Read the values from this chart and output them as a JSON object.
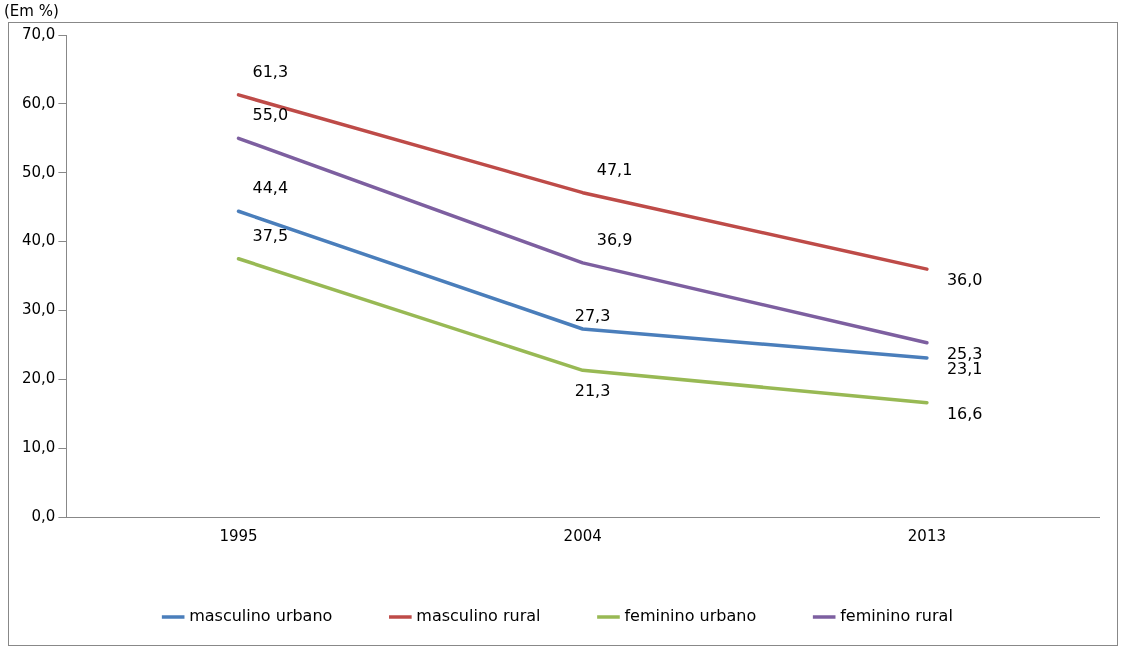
{
  "chart_data": {
    "type": "line",
    "ylabel": "(Em %)",
    "categories": [
      "1995",
      "2004",
      "2013"
    ],
    "series": [
      {
        "name": "masculino urbano",
        "color": "#4a7ebb",
        "values": [
          44.4,
          27.3,
          23.1
        ],
        "value_labels": [
          "44,4",
          "27,3",
          "23,1"
        ]
      },
      {
        "name": "masculino rural",
        "color": "#be4b48",
        "values": [
          61.3,
          47.1,
          36.0
        ],
        "value_labels": [
          "61,3",
          "47,1",
          "36,0"
        ]
      },
      {
        "name": "feminino urbano",
        "color": "#98b954",
        "values": [
          37.5,
          21.3,
          16.6
        ],
        "value_labels": [
          "37,5",
          "21,3",
          "16,6"
        ]
      },
      {
        "name": "feminino rural",
        "color": "#7d5fa0",
        "values": [
          55.0,
          36.9,
          25.3
        ],
        "value_labels": [
          "55,0",
          "36,9",
          "25,3"
        ]
      }
    ],
    "ylim": [
      0,
      70
    ],
    "yticks": [
      {
        "value": 0,
        "label": "0,0"
      },
      {
        "value": 10,
        "label": "10,0"
      },
      {
        "value": 20,
        "label": "20,0"
      },
      {
        "value": 30,
        "label": "30,0"
      },
      {
        "value": 40,
        "label": "40,0"
      },
      {
        "value": 50,
        "label": "50,0"
      },
      {
        "value": 60,
        "label": "60,0"
      },
      {
        "value": 70,
        "label": "70,0"
      }
    ],
    "grid": false,
    "legend": "bottom",
    "marker": "none",
    "line_style": "solid"
  }
}
